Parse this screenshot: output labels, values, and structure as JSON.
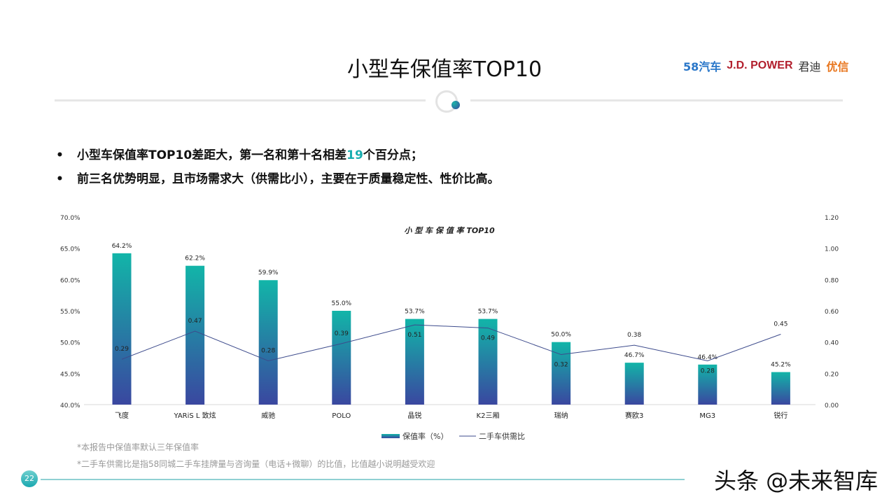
{
  "header": {
    "title": "小型车保值率TOP10",
    "logos": [
      "58汽车",
      "J.D. POWER",
      "君迪",
      "优信"
    ]
  },
  "bullets": [
    {
      "before": "小型车保值率TOP10差距大，第一名和第十名相差",
      "highlight": "19",
      "after": "个百分点；"
    },
    {
      "before": "前三名优势明显，且市场需求大（供需比小），主要在于质量稳定性、性价比高。",
      "highlight": "",
      "after": ""
    }
  ],
  "chart_data": {
    "type": "bar+line",
    "title": "小 型 车 保 值 率 TOP10",
    "categories": [
      "飞度",
      "YARiS L 致炫",
      "威驰",
      "POLO",
      "晶锐",
      "K2三厢",
      "瑞纳",
      "赛欧3",
      "MG3",
      "锐行"
    ],
    "series": [
      {
        "name": "保值率（%）",
        "type": "bar",
        "axis": "left",
        "values": [
          64.2,
          62.2,
          59.9,
          55.0,
          53.7,
          53.7,
          50.0,
          46.7,
          46.4,
          45.2
        ],
        "labels": [
          "64.2%",
          "62.2%",
          "59.9%",
          "55.0%",
          "53.7%",
          "53.7%",
          "50.0%",
          "46.7%",
          "46.4%",
          "45.2%"
        ]
      },
      {
        "name": "二手车供需比",
        "type": "line",
        "axis": "right",
        "values": [
          0.29,
          0.47,
          0.28,
          0.39,
          0.51,
          0.49,
          0.32,
          0.38,
          0.28,
          0.45
        ],
        "labels": [
          "0.29",
          "0.47",
          "0.28",
          "0.39",
          "0.51",
          "0.49",
          "0.32",
          "0.38",
          "0.28",
          "0.45"
        ]
      }
    ],
    "left_axis": {
      "range": [
        40,
        70
      ],
      "ticks": [
        "40.0%",
        "45.0%",
        "50.0%",
        "55.0%",
        "60.0%",
        "65.0%",
        "70.0%"
      ]
    },
    "right_axis": {
      "range": [
        0,
        1.2
      ],
      "ticks": [
        "0.00",
        "0.20",
        "0.40",
        "0.60",
        "0.80",
        "1.00",
        "1.20"
      ]
    },
    "legend_position": "bottom",
    "grid": false,
    "colors": {
      "bar_top": "#12b5a8",
      "bar_bottom": "#3a47a0",
      "line": "#3d4b8c"
    }
  },
  "notes": [
    "*本报告中保值率默认三年保值率",
    "*二手车供需比是指58同城二手车挂牌量与咨询量（电话+微聊）的比值，比值越小说明越受欢迎"
  ],
  "footer": {
    "page": "22",
    "watermark": "头条 @未来智库"
  }
}
